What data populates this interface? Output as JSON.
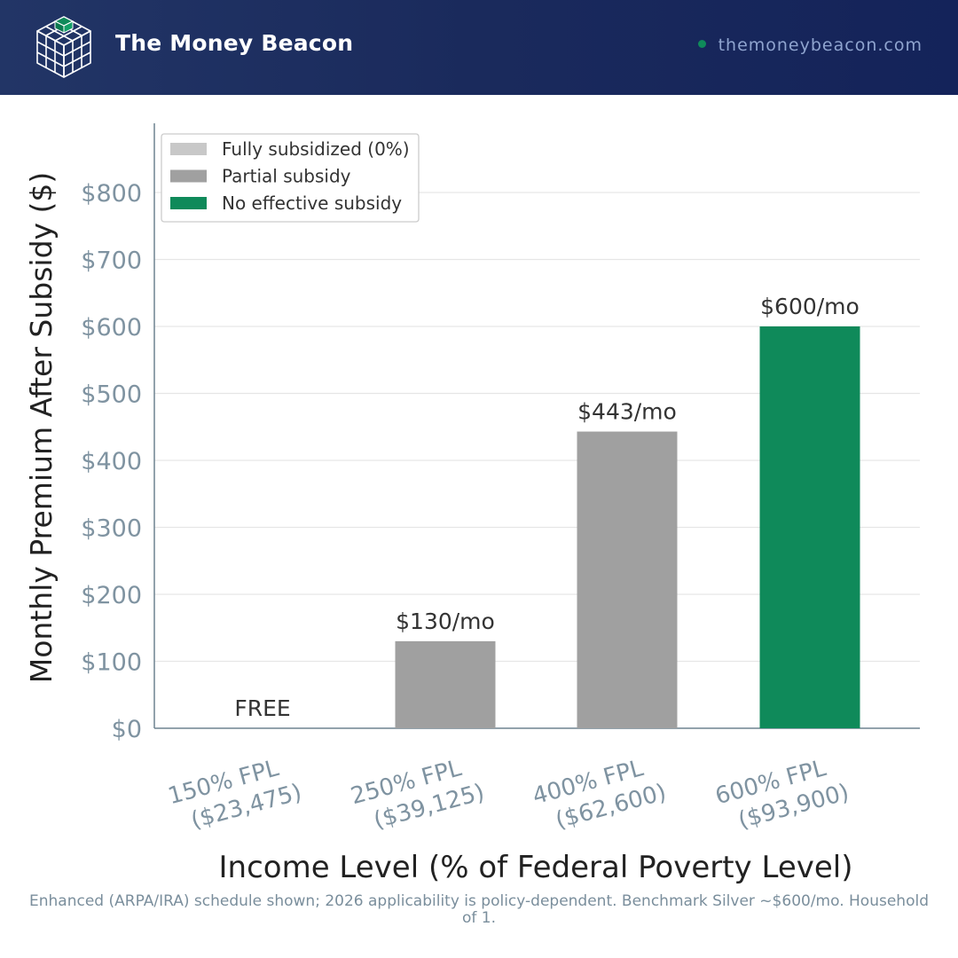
{
  "header": {
    "brand": "The Money Beacon",
    "site": "themoneybeacon.com",
    "logo_icon": "cube-grid-icon",
    "colors": {
      "background": "#1a2a5c",
      "accent": "#0f8a5a"
    }
  },
  "chart_data": {
    "type": "bar",
    "categories": [
      "150% FPL\n($23,475)",
      "250% FPL\n($39,125)",
      "400% FPL\n($62,600)",
      "600% FPL\n($93,900)"
    ],
    "values": [
      0,
      130,
      443,
      600
    ],
    "value_labels": [
      "FREE",
      "$130/mo",
      "$443/mo",
      "$600/mo"
    ],
    "bar_groups": [
      "Fully subsidized (0%)",
      "Partial subsidy",
      "Partial subsidy",
      "No effective subsidy"
    ],
    "xlabel": "Income Level (% of Federal Poverty Level)",
    "ylabel": "Monthly Premium After Subsidy ($)",
    "ylim": [
      0,
      900
    ],
    "yticks": [
      0,
      100,
      200,
      300,
      400,
      500,
      600,
      700,
      800
    ],
    "ytick_labels": [
      "$0",
      "$100",
      "$200",
      "$300",
      "$400",
      "$500",
      "$600",
      "$700",
      "$800"
    ],
    "grid": true,
    "legend": {
      "placement": "top-left",
      "entries": [
        {
          "label": "Fully subsidized (0%)",
          "color": "#c8c8c8"
        },
        {
          "label": "Partial subsidy",
          "color": "#a0a0a0"
        },
        {
          "label": "No effective subsidy",
          "color": "#0f8a5a"
        }
      ]
    }
  },
  "footnote": {
    "line1": "Enhanced (ARPA/IRA) schedule shown; 2026 applicability is policy-dependent. Benchmark Silver ~$600/mo. Household",
    "line2": "of 1."
  }
}
